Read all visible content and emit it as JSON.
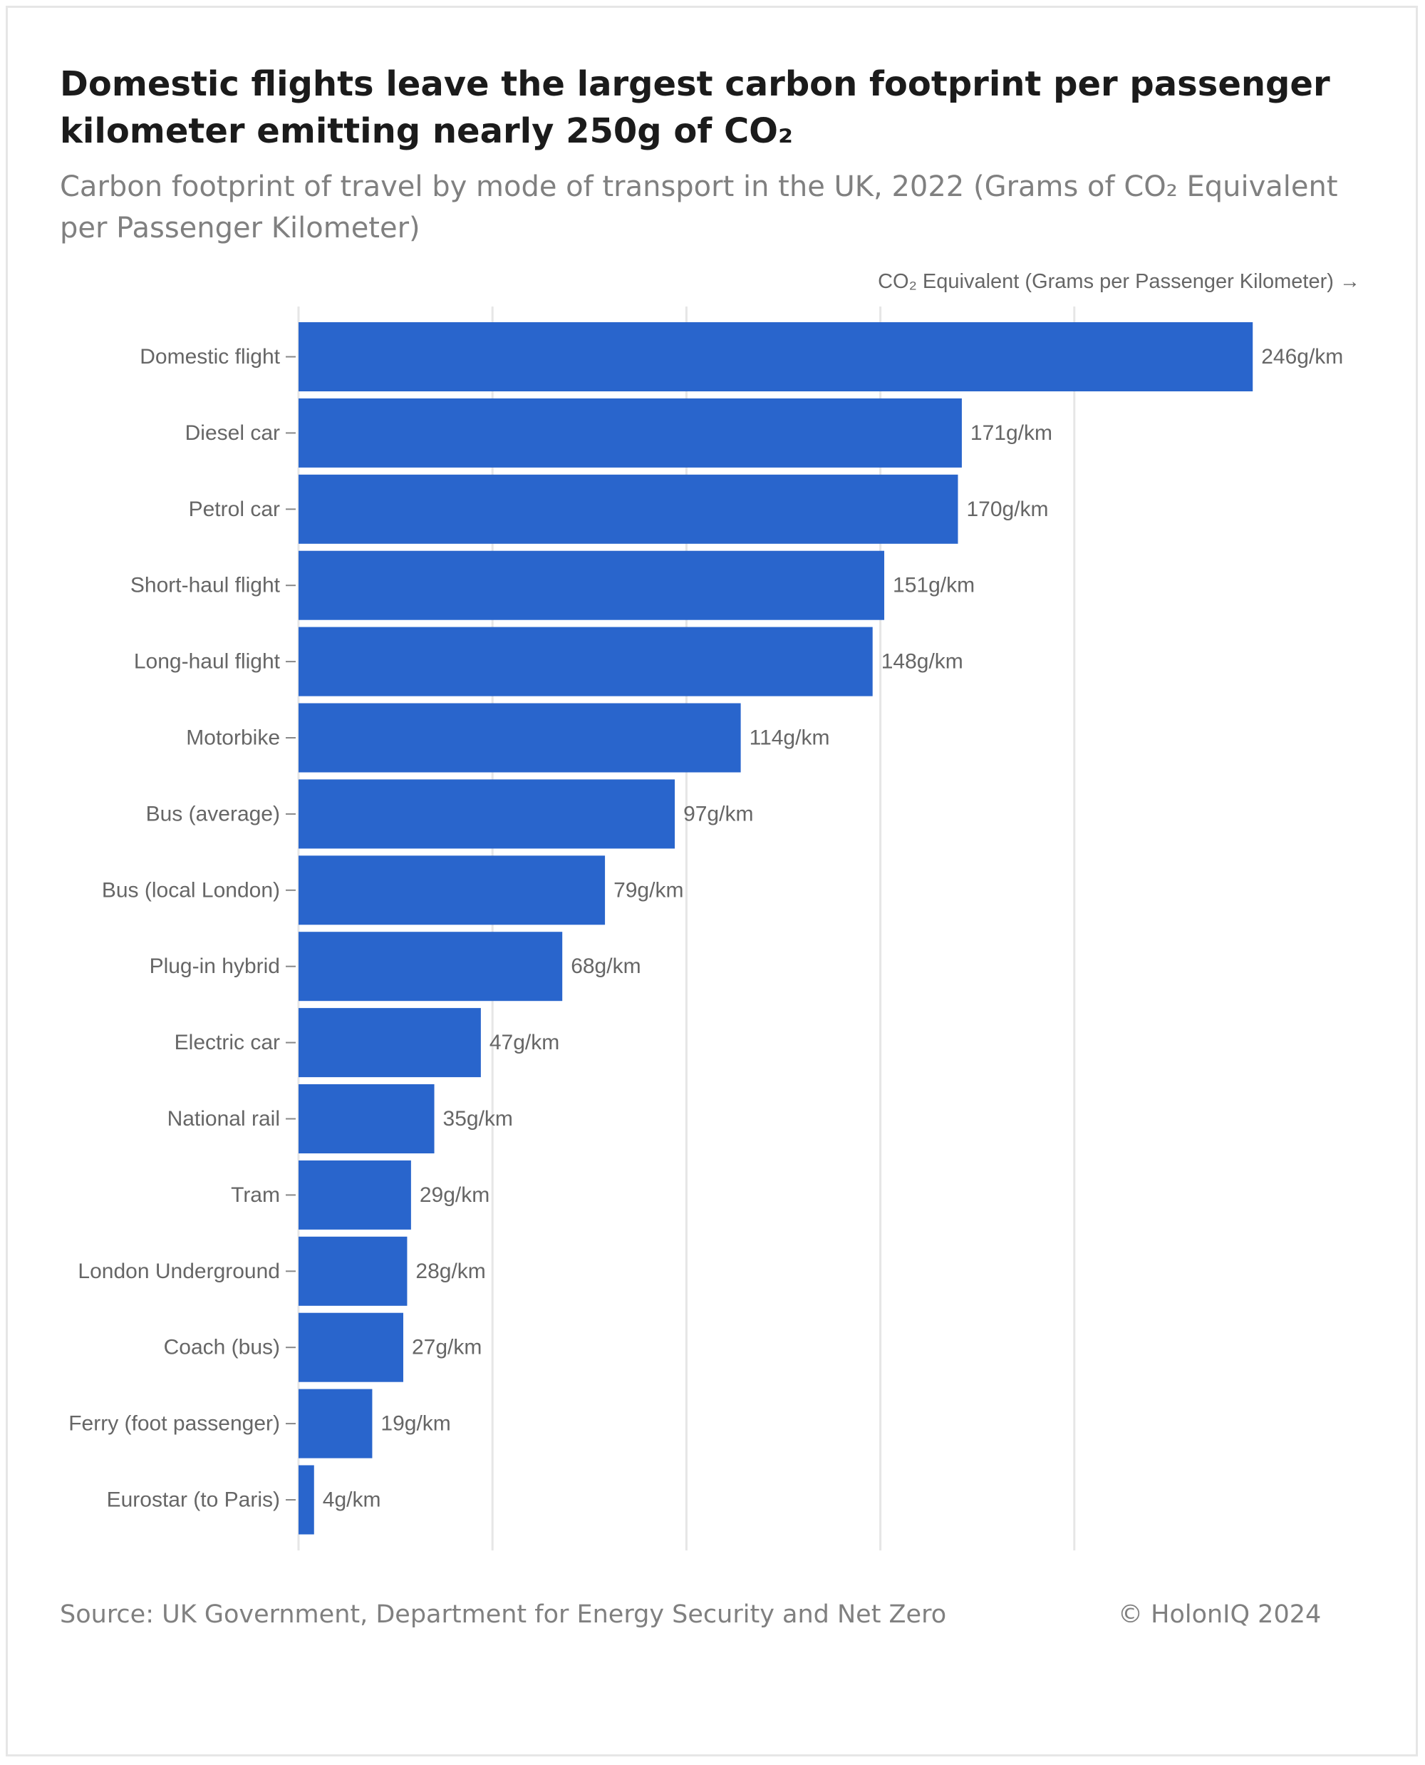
{
  "title": "Domestic flights leave the largest carbon footprint per passenger kilometer emitting nearly 250g of CO₂",
  "subtitle": "Carbon footprint of travel by mode of transport in the UK, 2022 (Grams of CO₂ Equivalent per Passenger Kilometer)",
  "footer": {
    "source": "Source: UK Government, Department for Energy Security and Net Zero",
    "copyright": "© HolonIQ 2024"
  },
  "colors": {
    "bar": "#2965cc",
    "grid": "#e6e6e6",
    "label": "#666666"
  },
  "chart_data": {
    "type": "bar",
    "orientation": "horizontal",
    "xlabel": "CO₂ Equivalent (Grams per Passenger Kilometer) →",
    "xlim": [
      0,
      272
    ],
    "gridlines": [
      0,
      50,
      100,
      150,
      200
    ],
    "grid": true,
    "categories": [
      "Domestic flight",
      "Diesel car",
      "Petrol car",
      "Short-haul flight",
      "Long-haul flight",
      "Motorbike",
      "Bus (average)",
      "Bus (local London)",
      "Plug-in hybrid",
      "Electric car",
      "National rail",
      "Tram",
      "London Underground",
      "Coach (bus)",
      "Ferry (foot passenger)",
      "Eurostar (to Paris)"
    ],
    "values": [
      246,
      171,
      170,
      151,
      148,
      114,
      97,
      79,
      68,
      47,
      35,
      29,
      28,
      27,
      19,
      4
    ],
    "data_labels": [
      "246g/km",
      "171g/km",
      "170g/km",
      "151g/km",
      "148g/km",
      "114g/km",
      "97g/km",
      "79g/km",
      "68g/km",
      "47g/km",
      "35g/km",
      "29g/km",
      "28g/km",
      "27g/km",
      "19g/km",
      "4g/km"
    ]
  }
}
